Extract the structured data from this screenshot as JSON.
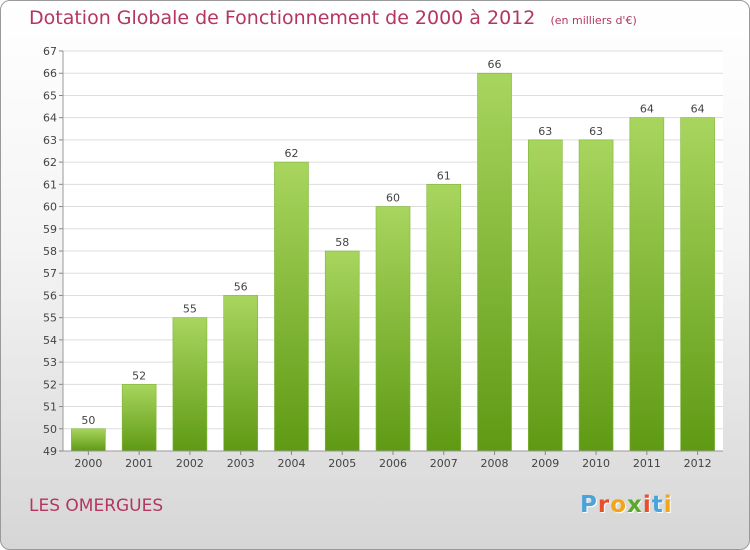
{
  "header": {
    "title": "Dotation Globale de Fonctionnement de 2000 à 2012",
    "unit": "(en milliers d'€)"
  },
  "footer": {
    "commune": "LES OMERGUES"
  },
  "logo": {
    "text": "Proxiti",
    "letters": [
      "P",
      "r",
      "o",
      "x",
      "i",
      "t",
      "i"
    ],
    "colors": [
      "#4aa3d9",
      "#e8502a",
      "#f2a51a",
      "#5aa82c",
      "#e8502a",
      "#4aa3d9",
      "#f2a51a"
    ]
  },
  "colors": {
    "bar_light": "#a8d55e",
    "bar_dark": "#5f9a14",
    "title": "#b4365f",
    "grid": "#dddddd",
    "text": "#444444"
  },
  "chart_data": {
    "type": "bar",
    "title": "Dotation Globale de Fonctionnement de 2000 à 2012",
    "subtitle": "(en milliers d'€)",
    "categories": [
      "2000",
      "2001",
      "2002",
      "2003",
      "2004",
      "2005",
      "2006",
      "2007",
      "2008",
      "2009",
      "2010",
      "2011",
      "2012"
    ],
    "values": [
      50,
      52,
      55,
      56,
      62,
      58,
      60,
      61,
      66,
      63,
      63,
      64,
      64
    ],
    "ylim": [
      49,
      67
    ],
    "yticks": [
      49,
      50,
      51,
      52,
      53,
      54,
      55,
      56,
      57,
      58,
      59,
      60,
      61,
      62,
      63,
      64,
      65,
      66,
      67
    ],
    "grid": true,
    "xlabel": "",
    "ylabel": ""
  }
}
